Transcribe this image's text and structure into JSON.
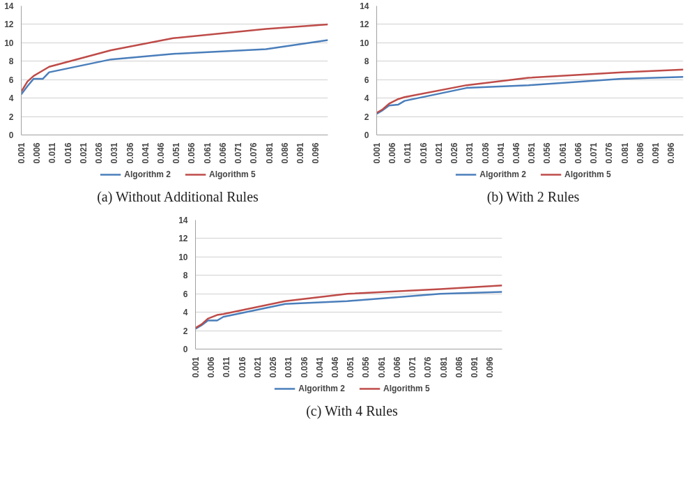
{
  "chart_data": [
    {
      "type": "line",
      "title": "(a) Without Additional Rules",
      "x": [
        0.001,
        0.003,
        0.005,
        0.008,
        0.01,
        0.03,
        0.05,
        0.08,
        0.1
      ],
      "xlim": [
        0.001,
        0.1
      ],
      "xticks": [
        0.001,
        0.006,
        0.011,
        0.016,
        0.021,
        0.026,
        0.031,
        0.036,
        0.041,
        0.046,
        0.051,
        0.056,
        0.061,
        0.066,
        0.071,
        0.076,
        0.081,
        0.086,
        0.091,
        0.096
      ],
      "ylim": [
        0,
        14
      ],
      "yticks": [
        0,
        2,
        4,
        6,
        8,
        10,
        12,
        14
      ],
      "grid": "y",
      "legend": "bottom",
      "series": [
        {
          "name": "Algorithm 2",
          "color": "#4a7ebb",
          "values": [
            4.4,
            5.3,
            6.1,
            6.1,
            6.8,
            8.2,
            8.8,
            9.3,
            10.3
          ]
        },
        {
          "name": "Algorithm 5",
          "color": "#be4b48",
          "values": [
            4.7,
            5.8,
            6.4,
            7.0,
            7.4,
            9.2,
            10.5,
            11.5,
            12.0
          ]
        }
      ]
    },
    {
      "type": "line",
      "title": "(b) With 2 Rules",
      "x": [
        0.001,
        0.003,
        0.005,
        0.008,
        0.01,
        0.03,
        0.05,
        0.08,
        0.1
      ],
      "xlim": [
        0.001,
        0.1
      ],
      "xticks": [
        0.001,
        0.006,
        0.011,
        0.016,
        0.021,
        0.026,
        0.031,
        0.036,
        0.041,
        0.046,
        0.051,
        0.056,
        0.061,
        0.066,
        0.071,
        0.076,
        0.081,
        0.086,
        0.091,
        0.096
      ],
      "ylim": [
        0,
        14
      ],
      "yticks": [
        0,
        2,
        4,
        6,
        8,
        10,
        12,
        14
      ],
      "grid": "y",
      "legend": "bottom",
      "series": [
        {
          "name": "Algorithm 2",
          "color": "#4a7ebb",
          "values": [
            2.3,
            2.7,
            3.2,
            3.3,
            3.7,
            5.1,
            5.4,
            6.1,
            6.3
          ]
        },
        {
          "name": "Algorithm 5",
          "color": "#be4b48",
          "values": [
            2.4,
            2.8,
            3.4,
            3.9,
            4.1,
            5.4,
            6.2,
            6.8,
            7.1
          ]
        }
      ]
    },
    {
      "type": "line",
      "title": "(c) With 4 Rules",
      "x": [
        0.001,
        0.003,
        0.005,
        0.008,
        0.01,
        0.03,
        0.05,
        0.08,
        0.1
      ],
      "xlim": [
        0.001,
        0.1
      ],
      "xticks": [
        0.001,
        0.006,
        0.011,
        0.016,
        0.021,
        0.026,
        0.031,
        0.036,
        0.041,
        0.046,
        0.051,
        0.056,
        0.061,
        0.066,
        0.071,
        0.076,
        0.081,
        0.086,
        0.091,
        0.096
      ],
      "ylim": [
        0,
        14
      ],
      "yticks": [
        0,
        2,
        4,
        6,
        8,
        10,
        12,
        14
      ],
      "grid": "y",
      "legend": "bottom",
      "series": [
        {
          "name": "Algorithm 2",
          "color": "#4a7ebb",
          "values": [
            2.2,
            2.6,
            3.1,
            3.1,
            3.5,
            4.9,
            5.2,
            6.0,
            6.2
          ]
        },
        {
          "name": "Algorithm 5",
          "color": "#be4b48",
          "values": [
            2.3,
            2.7,
            3.3,
            3.7,
            3.8,
            5.2,
            6.0,
            6.5,
            6.9
          ]
        }
      ]
    }
  ]
}
